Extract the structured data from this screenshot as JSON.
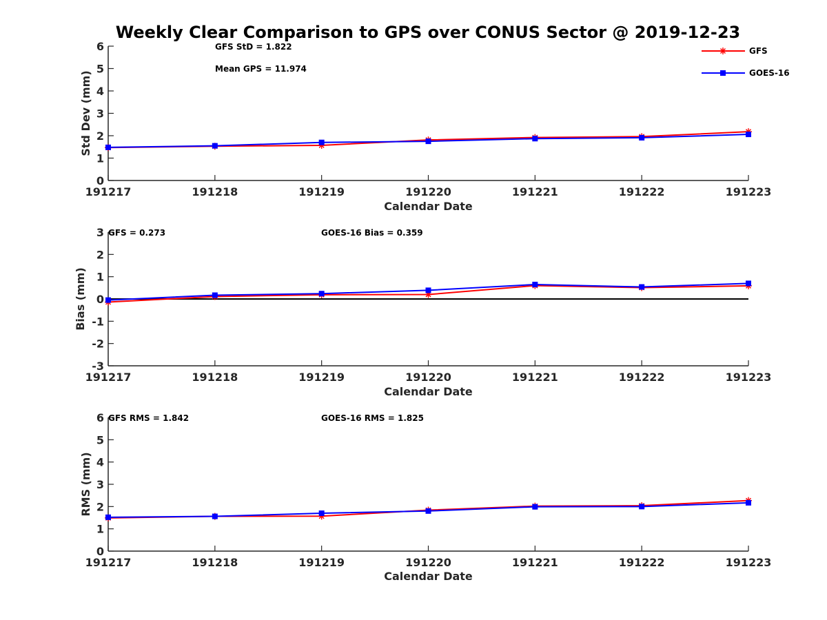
{
  "figure": {
    "title": "Weekly Clear Comparison to GPS over CONUS Sector @ 2019-12-23"
  },
  "legend": {
    "items": [
      {
        "label": "GFS",
        "color": "#ff0000",
        "marker": "asterisk"
      },
      {
        "label": "GOES-16",
        "color": "#0000ff",
        "marker": "square"
      }
    ],
    "position": "top-right"
  },
  "chart_data": [
    {
      "type": "line",
      "categories": [
        "191217",
        "191218",
        "191219",
        "191220",
        "191221",
        "191222",
        "191223"
      ],
      "xlabel": "Calendar Date",
      "ylabel": "Std Dev (mm)",
      "ylim": [
        0,
        6
      ],
      "yticks": [
        "0",
        "1",
        "2",
        "3",
        "4",
        "5",
        "6"
      ],
      "annotations": [
        "GFS StD = 1.822",
        "Mean GPS = 11.974"
      ],
      "zero_line": false,
      "series": [
        {
          "name": "GFS",
          "color": "#ff0000",
          "marker": "asterisk",
          "values": [
            1.47,
            1.53,
            1.57,
            1.81,
            1.92,
            1.96,
            2.18
          ]
        },
        {
          "name": "GOES-16",
          "color": "#0000ff",
          "marker": "square",
          "values": [
            1.48,
            1.55,
            1.7,
            1.75,
            1.87,
            1.91,
            2.06
          ]
        }
      ]
    },
    {
      "type": "line",
      "categories": [
        "191217",
        "191218",
        "191219",
        "191220",
        "191221",
        "191222",
        "191223"
      ],
      "xlabel": "Calendar Date",
      "ylabel": "Bias (mm)",
      "ylim": [
        -3,
        3
      ],
      "yticks": [
        "-3",
        "-2",
        "-1",
        "0",
        "1",
        "2",
        "3"
      ],
      "annotations": [
        "GFS = 0.273",
        "GOES-16 Bias  = 0.359"
      ],
      "zero_line": true,
      "series": [
        {
          "name": "GFS",
          "color": "#ff0000",
          "marker": "asterisk",
          "values": [
            -0.14,
            0.11,
            0.19,
            0.2,
            0.6,
            0.51,
            0.59
          ]
        },
        {
          "name": "GOES-16",
          "color": "#0000ff",
          "marker": "square",
          "values": [
            -0.05,
            0.17,
            0.24,
            0.39,
            0.65,
            0.54,
            0.7
          ]
        }
      ]
    },
    {
      "type": "line",
      "categories": [
        "191217",
        "191218",
        "191219",
        "191220",
        "191221",
        "191222",
        "191223"
      ],
      "xlabel": "Calendar Date",
      "ylabel": "RMS (mm)",
      "ylim": [
        0,
        6
      ],
      "yticks": [
        "0",
        "1",
        "2",
        "3",
        "4",
        "5",
        "6"
      ],
      "annotations": [
        "GFS RMS = 1.842",
        "GOES-16 RMS = 1.825"
      ],
      "zero_line": false,
      "series": [
        {
          "name": "GFS",
          "color": "#ff0000",
          "marker": "asterisk",
          "values": [
            1.49,
            1.56,
            1.57,
            1.84,
            2.02,
            2.04,
            2.27
          ]
        },
        {
          "name": "GOES-16",
          "color": "#0000ff",
          "marker": "square",
          "values": [
            1.52,
            1.56,
            1.7,
            1.8,
            1.99,
            2.0,
            2.17
          ]
        }
      ]
    }
  ]
}
